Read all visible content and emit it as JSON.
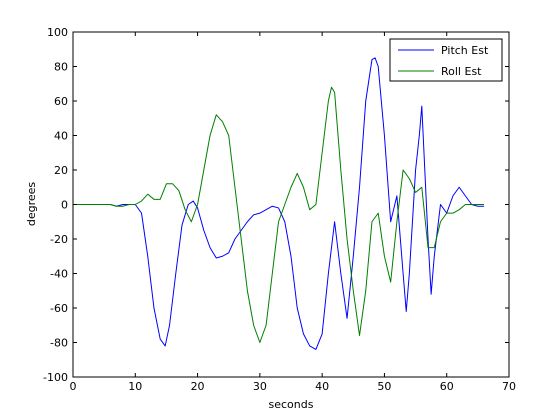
{
  "chart_data": {
    "type": "line",
    "title": "",
    "xlabel": "seconds",
    "ylabel": "degrees",
    "xlim": [
      0,
      70
    ],
    "ylim": [
      -100,
      100
    ],
    "xticks": [
      0,
      10,
      20,
      30,
      40,
      50,
      60,
      70
    ],
    "yticks": [
      -100,
      -80,
      -60,
      -40,
      -20,
      0,
      20,
      40,
      60,
      80,
      100
    ],
    "grid": false,
    "legend_position": "top-right",
    "series": [
      {
        "name": "Pitch Est",
        "color": "#0000ff",
        "points": [
          [
            0,
            0
          ],
          [
            5,
            0
          ],
          [
            6,
            0
          ],
          [
            7,
            -1
          ],
          [
            8,
            0
          ],
          [
            9,
            0
          ],
          [
            10,
            0
          ],
          [
            11,
            -5
          ],
          [
            12,
            -30
          ],
          [
            13,
            -60
          ],
          [
            14,
            -78
          ],
          [
            14.8,
            -82
          ],
          [
            15.5,
            -70
          ],
          [
            16.5,
            -40
          ],
          [
            17.5,
            -12
          ],
          [
            18.5,
            0
          ],
          [
            19.3,
            2
          ],
          [
            20,
            -2
          ],
          [
            21,
            -15
          ],
          [
            22,
            -25
          ],
          [
            23,
            -31
          ],
          [
            24,
            -30
          ],
          [
            25,
            -28
          ],
          [
            26,
            -20
          ],
          [
            27,
            -15
          ],
          [
            28,
            -10
          ],
          [
            29,
            -6
          ],
          [
            30,
            -5
          ],
          [
            31,
            -3
          ],
          [
            32,
            -1
          ],
          [
            33,
            -2
          ],
          [
            34,
            -10
          ],
          [
            35,
            -30
          ],
          [
            36,
            -60
          ],
          [
            37,
            -75
          ],
          [
            38,
            -82
          ],
          [
            39,
            -84
          ],
          [
            40,
            -75
          ],
          [
            41,
            -40
          ],
          [
            42,
            -10
          ],
          [
            43,
            -40
          ],
          [
            44,
            -66
          ],
          [
            45,
            -30
          ],
          [
            46,
            10
          ],
          [
            47,
            60
          ],
          [
            48,
            84
          ],
          [
            48.5,
            85
          ],
          [
            49,
            80
          ],
          [
            50,
            40
          ],
          [
            51,
            -10
          ],
          [
            52,
            5
          ],
          [
            53,
            -40
          ],
          [
            53.5,
            -62
          ],
          [
            54,
            -40
          ],
          [
            55,
            20
          ],
          [
            55.6,
            40
          ],
          [
            56,
            57
          ],
          [
            57,
            -20
          ],
          [
            57.5,
            -52
          ],
          [
            58,
            -30
          ],
          [
            59,
            0
          ],
          [
            60,
            -5
          ],
          [
            61,
            5
          ],
          [
            62,
            10
          ],
          [
            63,
            5
          ],
          [
            64,
            0
          ],
          [
            65,
            -1
          ],
          [
            66,
            -1
          ]
        ]
      },
      {
        "name": "Roll Est",
        "color": "#007f00",
        "points": [
          [
            0,
            0
          ],
          [
            5,
            0
          ],
          [
            6,
            0
          ],
          [
            7,
            -1
          ],
          [
            8,
            -1
          ],
          [
            9,
            0
          ],
          [
            10,
            0
          ],
          [
            11,
            2
          ],
          [
            12,
            6
          ],
          [
            13,
            3
          ],
          [
            14,
            3
          ],
          [
            15,
            12
          ],
          [
            16,
            12
          ],
          [
            17,
            8
          ],
          [
            18,
            -3
          ],
          [
            19,
            -10
          ],
          [
            20,
            0
          ],
          [
            21,
            20
          ],
          [
            22,
            40
          ],
          [
            23,
            52
          ],
          [
            24,
            48
          ],
          [
            25,
            40
          ],
          [
            26,
            10
          ],
          [
            27,
            -20
          ],
          [
            28,
            -50
          ],
          [
            29,
            -70
          ],
          [
            30,
            -80
          ],
          [
            31,
            -70
          ],
          [
            32,
            -40
          ],
          [
            33,
            -10
          ],
          [
            34,
            0
          ],
          [
            35,
            10
          ],
          [
            36,
            18
          ],
          [
            37,
            10
          ],
          [
            38,
            -3
          ],
          [
            39,
            0
          ],
          [
            40,
            30
          ],
          [
            41,
            60
          ],
          [
            41.5,
            68
          ],
          [
            42,
            65
          ],
          [
            43,
            20
          ],
          [
            44,
            -20
          ],
          [
            45,
            -50
          ],
          [
            46,
            -76
          ],
          [
            47,
            -50
          ],
          [
            48,
            -10
          ],
          [
            49,
            -5
          ],
          [
            50,
            -30
          ],
          [
            51,
            -45
          ],
          [
            52,
            -10
          ],
          [
            53,
            20
          ],
          [
            54,
            15
          ],
          [
            55,
            7
          ],
          [
            56,
            10
          ],
          [
            57,
            -25
          ],
          [
            58,
            -25
          ],
          [
            59,
            -10
          ],
          [
            60,
            -5
          ],
          [
            61,
            -5
          ],
          [
            62,
            -3
          ],
          [
            63,
            0
          ],
          [
            64,
            0
          ],
          [
            65,
            0
          ],
          [
            66,
            0
          ]
        ]
      }
    ]
  }
}
